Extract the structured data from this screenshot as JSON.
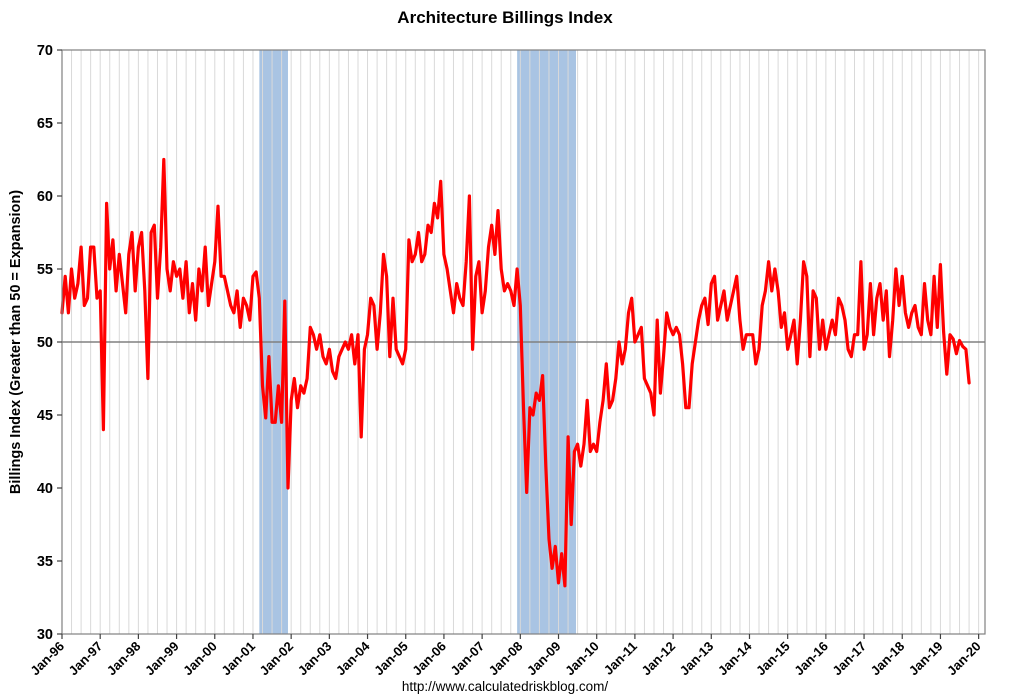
{
  "chart_data": {
    "type": "line",
    "title": "Architecture Billings Index",
    "ylabel": "Billings Index (Greater than 50 = Expansion)",
    "xlabel": "",
    "source": "http://www.calculatedriskblog.com/",
    "ylim": [
      30,
      70
    ],
    "y_ticks": [
      30,
      35,
      40,
      45,
      50,
      55,
      60,
      65,
      70
    ],
    "x_tick_labels": [
      "Jan-96",
      "Jan-97",
      "Jan-98",
      "Jan-99",
      "Jan-00",
      "Jan-01",
      "Jan-02",
      "Jan-03",
      "Jan-04",
      "Jan-05",
      "Jan-06",
      "Jan-07",
      "Jan-08",
      "Jan-09",
      "Jan-10",
      "Jan-11",
      "Jan-12",
      "Jan-13",
      "Jan-14",
      "Jan-15",
      "Jan-16",
      "Jan-17",
      "Jan-18",
      "Jan-19",
      "Jan-20"
    ],
    "x_start": "1996-01",
    "x_months_domain": [
      0,
      290
    ],
    "reference_line": 50,
    "reference_line_color": "#808080",
    "grid": {
      "vertical_every_months": 3,
      "color": "#d9d9d9"
    },
    "border_color": "#808080",
    "band_color": "#a9c4e3",
    "legend_position": "none",
    "recession_bands": [
      {
        "from_month": 62,
        "to_month": 71
      },
      {
        "from_month": 143,
        "to_month": 161.5
      }
    ],
    "series": [
      {
        "name": "Architecture Billings Index",
        "color": "#ff0000",
        "values": [
          52.0,
          54.5,
          52.0,
          55.0,
          53.0,
          54.0,
          56.5,
          52.5,
          53.0,
          56.5,
          56.5,
          53.0,
          53.5,
          44.0,
          59.5,
          55.0,
          57.0,
          53.5,
          56.0,
          54.0,
          52.0,
          56.0,
          57.5,
          53.5,
          56.5,
          57.5,
          53.5,
          47.5,
          57.5,
          58.0,
          53.0,
          56.5,
          62.5,
          55.0,
          53.5,
          55.5,
          54.5,
          55.0,
          53.0,
          55.5,
          52.0,
          54.0,
          51.5,
          55.0,
          53.5,
          56.5,
          52.5,
          54.0,
          55.5,
          59.3,
          54.5,
          54.5,
          53.5,
          52.5,
          52.0,
          53.5,
          51.0,
          53.0,
          52.5,
          51.5,
          54.5,
          54.8,
          53.0,
          47.0,
          44.8,
          49.0,
          44.5,
          44.5,
          47.0,
          44.5,
          52.8,
          40.0,
          46.0,
          47.5,
          45.5,
          47.0,
          46.5,
          47.5,
          51.0,
          50.5,
          49.5,
          50.5,
          49.0,
          48.5,
          49.5,
          48.0,
          47.5,
          49.0,
          49.5,
          50.0,
          49.5,
          50.5,
          48.5,
          50.5,
          43.5,
          49.5,
          50.5,
          53.0,
          52.5,
          49.5,
          52.0,
          56.0,
          54.5,
          49.0,
          53.0,
          49.5,
          49.0,
          48.5,
          49.5,
          57.0,
          55.5,
          56.0,
          57.5,
          55.5,
          56.0,
          58.0,
          57.5,
          59.5,
          58.5,
          61.0,
          56.0,
          55.0,
          53.5,
          52.0,
          54.0,
          53.0,
          52.5,
          55.5,
          60.0,
          49.5,
          54.5,
          55.5,
          52.0,
          53.5,
          56.5,
          58.0,
          56.0,
          59.0,
          55.0,
          53.5,
          54.0,
          53.5,
          52.5,
          55.0,
          52.5,
          45.5,
          39.7,
          45.5,
          45.0,
          46.5,
          46.0,
          47.7,
          41.5,
          36.5,
          34.5,
          36.0,
          33.5,
          35.5,
          33.3,
          43.5,
          37.5,
          42.5,
          43.0,
          41.5,
          43.0,
          46.0,
          42.5,
          43.0,
          42.5,
          44.5,
          46.0,
          48.5,
          45.5,
          46.0,
          47.5,
          50.0,
          48.5,
          49.5,
          52.0,
          53.0,
          50.0,
          50.5,
          51.0,
          47.5,
          47.0,
          46.5,
          45.0,
          51.5,
          46.5,
          49.0,
          52.0,
          51.0,
          50.5,
          51.0,
          50.5,
          48.5,
          45.5,
          45.5,
          48.5,
          50.0,
          51.5,
          52.5,
          53.0,
          51.2,
          54.0,
          54.5,
          51.5,
          52.5,
          53.5,
          51.5,
          52.5,
          53.5,
          54.5,
          51.5,
          49.5,
          50.5,
          50.5,
          50.5,
          48.5,
          49.5,
          52.5,
          53.5,
          55.5,
          53.5,
          55.0,
          53.5,
          51.0,
          52.0,
          49.5,
          50.5,
          51.5,
          48.5,
          51.5,
          55.5,
          54.5,
          49.0,
          53.5,
          53.0,
          49.5,
          51.5,
          49.5,
          50.5,
          51.5,
          50.5,
          53.0,
          52.5,
          51.5,
          49.5,
          49.0,
          50.5,
          50.5,
          55.5,
          49.5,
          50.5,
          54.0,
          50.5,
          53.0,
          54.0,
          51.5,
          53.5,
          49.0,
          51.5,
          55.0,
          52.5,
          54.5,
          52.0,
          51.0,
          52.0,
          52.5,
          51.0,
          50.5,
          54.0,
          51.5,
          50.5,
          54.5,
          51.0,
          55.3,
          50.7,
          47.8,
          50.5,
          50.2,
          49.2,
          50.1,
          49.7,
          49.5,
          47.2
        ]
      }
    ]
  }
}
